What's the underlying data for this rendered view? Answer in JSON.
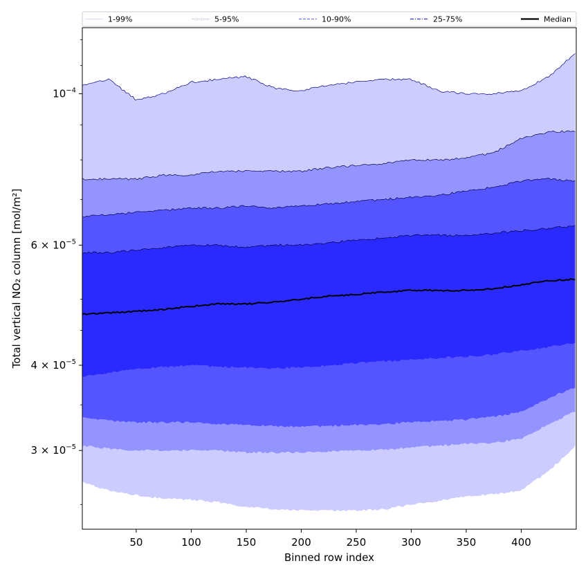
{
  "chart_data": {
    "type": "area",
    "xlabel": "Binned row index",
    "ylabel": "Total vertical NO₂ column [mol/m²]",
    "yscale": "log",
    "xlim": [
      1,
      450
    ],
    "ylim": [
      2.3e-05,
      0.000125
    ],
    "xticks": [
      50,
      100,
      150,
      200,
      250,
      300,
      350,
      400
    ],
    "yticks": [
      {
        "value": 3e-05,
        "mant": "3",
        "exp": "−5"
      },
      {
        "value": 4e-05,
        "mant": "4",
        "exp": "−5"
      },
      {
        "value": 6e-05,
        "mant": "6",
        "exp": "−5"
      },
      {
        "value": 0.0001,
        "mant": "10",
        "exp": "−4"
      }
    ],
    "legend": {
      "placement": "top",
      "entries": [
        {
          "label": "1-99%",
          "style": "thin-solid"
        },
        {
          "label": "5-95%",
          "style": "thin-dotted"
        },
        {
          "label": "10-90%",
          "style": "dashed"
        },
        {
          "label": "25-75%",
          "style": "dash-dot"
        },
        {
          "label": "Median",
          "style": "thick-solid"
        }
      ]
    },
    "x": [
      1,
      25,
      50,
      75,
      100,
      125,
      150,
      175,
      200,
      225,
      250,
      275,
      300,
      325,
      350,
      375,
      400,
      425,
      450
    ],
    "series": [
      {
        "name": "1-99%",
        "color": "#ccccff",
        "lower": [
          2.7e-05,
          2.62e-05,
          2.58e-05,
          2.55e-05,
          2.54e-05,
          2.52e-05,
          2.48e-05,
          2.46e-05,
          2.45e-05,
          2.45e-05,
          2.45e-05,
          2.46e-05,
          2.5e-05,
          2.53e-05,
          2.57e-05,
          2.59e-05,
          2.62e-05,
          2.8e-05,
          3.05e-05
        ],
        "upper": [
          0.000103,
          0.000105,
          9.8e-05,
          0.0001,
          0.000104,
          0.000105,
          0.000106,
          0.000102,
          0.000101,
          0.000103,
          0.000104,
          0.000105,
          0.000105,
          0.000101,
          0.0001,
          0.0001,
          0.000101,
          0.000106,
          0.000115
        ]
      },
      {
        "name": "5-95%",
        "color": "#9494ff",
        "lower": [
          3.05e-05,
          3.02e-05,
          3e-05,
          3e-05,
          3e-05,
          3e-05,
          2.98e-05,
          2.98e-05,
          2.98e-05,
          2.99e-05,
          3e-05,
          3.01e-05,
          3.03e-05,
          3.05e-05,
          3.07e-05,
          3.08e-05,
          3.12e-05,
          3.28e-05,
          3.43e-05
        ],
        "upper": [
          7.5e-05,
          7.5e-05,
          7.5e-05,
          7.6e-05,
          7.6e-05,
          7.7e-05,
          7.7e-05,
          7.7e-05,
          7.7e-05,
          7.8e-05,
          7.85e-05,
          7.9e-05,
          8e-05,
          8e-05,
          8.05e-05,
          8.2e-05,
          8.6e-05,
          8.8e-05,
          8.8e-05
        ]
      },
      {
        "name": "10-90%",
        "color": "#5555ff",
        "lower": [
          3.35e-05,
          3.32e-05,
          3.3e-05,
          3.3e-05,
          3.3e-05,
          3.28e-05,
          3.27e-05,
          3.26e-05,
          3.25e-05,
          3.26e-05,
          3.27e-05,
          3.28e-05,
          3.3e-05,
          3.32e-05,
          3.33e-05,
          3.36e-05,
          3.42e-05,
          3.58e-05,
          3.72e-05
        ],
        "upper": [
          6.6e-05,
          6.65e-05,
          6.7e-05,
          6.75e-05,
          6.8e-05,
          6.8e-05,
          6.85e-05,
          6.8e-05,
          6.85e-05,
          6.9e-05,
          6.95e-05,
          7e-05,
          7.05e-05,
          7.1e-05,
          7.2e-05,
          7.3e-05,
          7.45e-05,
          7.5e-05,
          7.45e-05
        ]
      },
      {
        "name": "25-75%",
        "color": "#2a2aff",
        "lower": [
          3.85e-05,
          3.9e-05,
          3.95e-05,
          3.98e-05,
          4e-05,
          3.98e-05,
          3.97e-05,
          3.96e-05,
          3.97e-05,
          4e-05,
          4.03e-05,
          4.05e-05,
          4.08e-05,
          4.1e-05,
          4.12e-05,
          4.15e-05,
          4.2e-05,
          4.25e-05,
          4.32e-05
        ],
        "upper": [
          5.85e-05,
          5.85e-05,
          5.9e-05,
          5.95e-05,
          6e-05,
          6e-05,
          5.95e-05,
          6e-05,
          6e-05,
          6.05e-05,
          6.1e-05,
          6.15e-05,
          6.2e-05,
          6.2e-05,
          6.2e-05,
          6.25e-05,
          6.3e-05,
          6.35e-05,
          6.4e-05
        ]
      },
      {
        "name": "Median",
        "color": "#000000",
        "values": [
          4.75e-05,
          4.77e-05,
          4.8e-05,
          4.83e-05,
          4.88e-05,
          4.92e-05,
          4.92e-05,
          4.95e-05,
          5e-05,
          5.05e-05,
          5.08e-05,
          5.12e-05,
          5.15e-05,
          5.15e-05,
          5.15e-05,
          5.18e-05,
          5.25e-05,
          5.32e-05,
          5.35e-05
        ]
      }
    ]
  }
}
